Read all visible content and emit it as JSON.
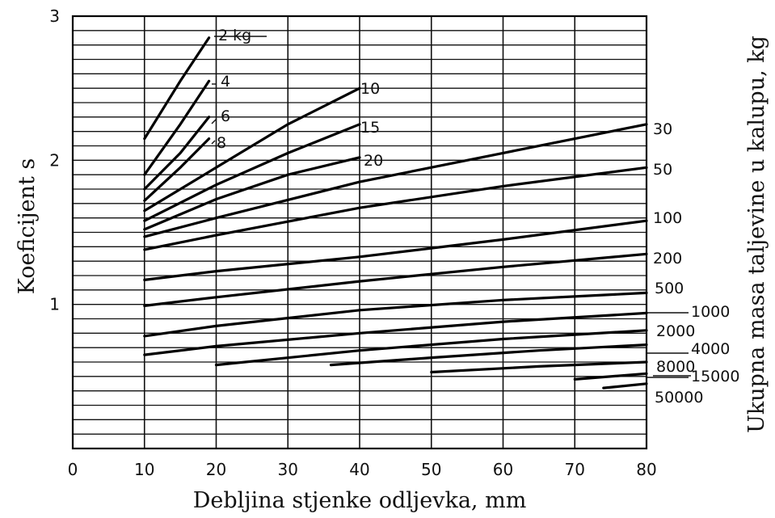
{
  "chart_data": {
    "type": "line",
    "xlabel": "Debljina stjenke odljevka, mm",
    "ylabel": "Koeficijent s",
    "right_label": "Ukupna masa taljevine u kalupu, kg",
    "xlim": [
      0,
      80
    ],
    "ylim": [
      0,
      3
    ],
    "x_ticks": [
      "0",
      "10",
      "20",
      "30",
      "40",
      "50",
      "60",
      "70",
      "80"
    ],
    "y_ticks": [
      "1",
      "2",
      "3"
    ],
    "grid": true,
    "series": [
      {
        "name": "2 kg",
        "x": [
          10,
          15,
          19
        ],
        "y": [
          2.15,
          2.55,
          2.85
        ]
      },
      {
        "name": "4",
        "x": [
          10,
          15,
          19
        ],
        "y": [
          1.9,
          2.25,
          2.55
        ]
      },
      {
        "name": "6",
        "x": [
          10,
          15,
          19
        ],
        "y": [
          1.8,
          2.05,
          2.3
        ]
      },
      {
        "name": "8",
        "x": [
          10,
          15,
          19
        ],
        "y": [
          1.72,
          1.95,
          2.15
        ]
      },
      {
        "name": "10",
        "x": [
          10,
          20,
          30,
          40
        ],
        "y": [
          1.65,
          1.95,
          2.25,
          2.5
        ]
      },
      {
        "name": "15",
        "x": [
          10,
          20,
          30,
          40
        ],
        "y": [
          1.58,
          1.83,
          2.05,
          2.25
        ]
      },
      {
        "name": "20",
        "x": [
          10,
          20,
          30,
          40
        ],
        "y": [
          1.52,
          1.73,
          1.9,
          2.02
        ]
      },
      {
        "name": "30",
        "x": [
          10,
          20,
          40,
          60,
          80
        ],
        "y": [
          1.47,
          1.6,
          1.85,
          2.05,
          2.25
        ]
      },
      {
        "name": "50",
        "x": [
          10,
          20,
          40,
          60,
          80
        ],
        "y": [
          1.38,
          1.48,
          1.67,
          1.82,
          1.95
        ]
      },
      {
        "name": "100",
        "x": [
          10,
          20,
          40,
          60,
          80
        ],
        "y": [
          1.17,
          1.23,
          1.33,
          1.45,
          1.58
        ]
      },
      {
        "name": "200",
        "x": [
          10,
          20,
          40,
          60,
          80
        ],
        "y": [
          0.99,
          1.05,
          1.16,
          1.26,
          1.35
        ]
      },
      {
        "name": "500",
        "x": [
          10,
          20,
          40,
          60,
          80
        ],
        "y": [
          0.78,
          0.85,
          0.96,
          1.03,
          1.08
        ]
      },
      {
        "name": "1000",
        "x": [
          10,
          20,
          40,
          60,
          80
        ],
        "y": [
          0.65,
          0.71,
          0.8,
          0.88,
          0.94
        ]
      },
      {
        "name": "2000",
        "x": [
          20,
          40,
          60,
          80
        ],
        "y": [
          0.58,
          0.68,
          0.76,
          0.82
        ]
      },
      {
        "name": "4000",
        "x": [
          36,
          50,
          65,
          80
        ],
        "y": [
          0.58,
          0.63,
          0.68,
          0.72
        ]
      },
      {
        "name": "8000",
        "x": [
          50,
          65,
          80
        ],
        "y": [
          0.53,
          0.57,
          0.6
        ]
      },
      {
        "name": "15000",
        "x": [
          70,
          80
        ],
        "y": [
          0.48,
          0.52
        ]
      },
      {
        "name": "50000",
        "x": [
          74,
          80
        ],
        "y": [
          0.42,
          0.45
        ]
      }
    ]
  }
}
